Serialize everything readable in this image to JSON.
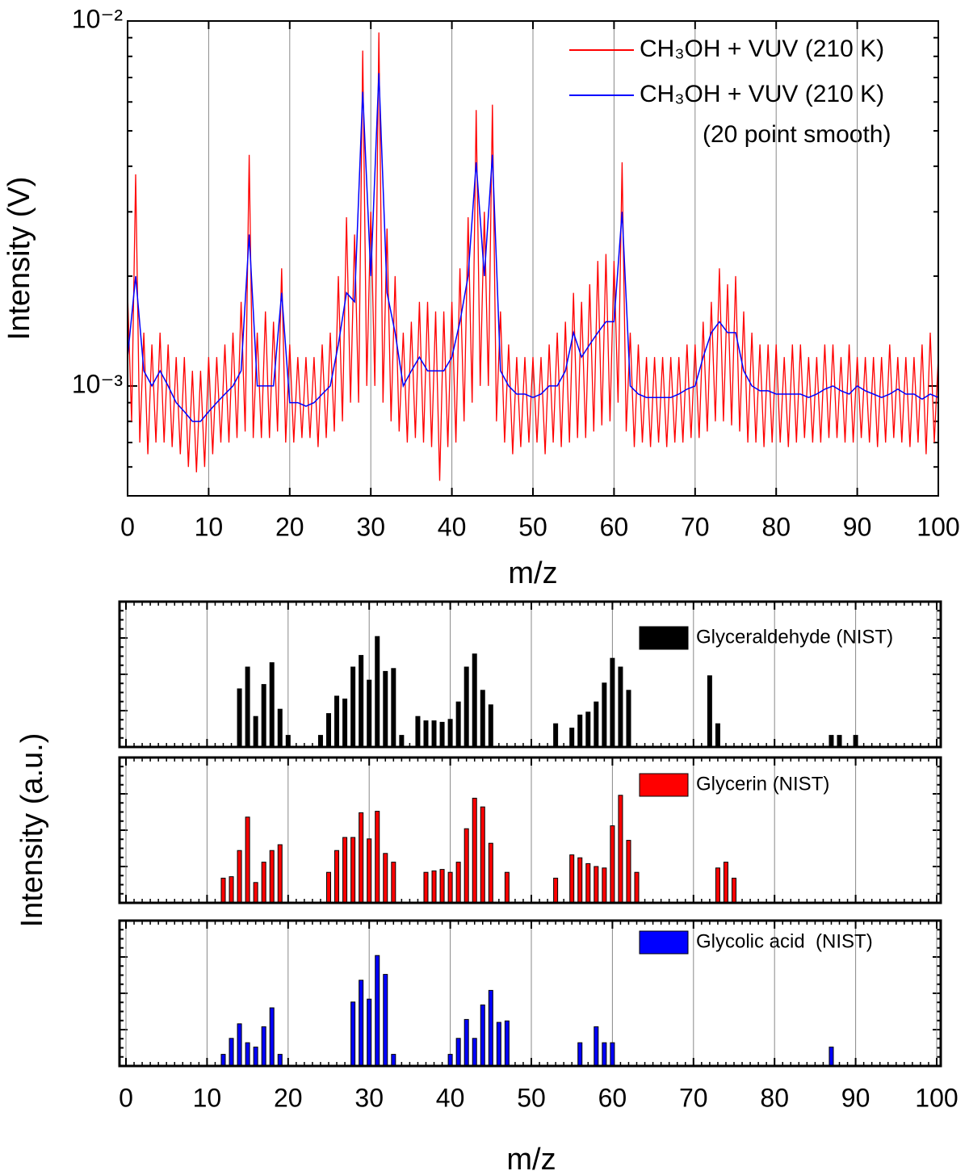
{
  "chart_data": [
    {
      "type": "line",
      "xlabel": "m/z",
      "ylabel": "Intensity (V)",
      "xlim": [
        0,
        100
      ],
      "xticks": [
        0,
        10,
        20,
        30,
        40,
        50,
        60,
        70,
        80,
        90,
        100
      ],
      "ylim": [
        0.0005,
        0.01
      ],
      "yscale": "log",
      "yticks": [
        {
          "value": 0.001,
          "label": "10⁻³"
        },
        {
          "value": 0.01,
          "label": "10⁻²"
        }
      ],
      "grid": true,
      "annotations": [
        "(20 point smooth)"
      ],
      "series": [
        {
          "name": "CH₃OH + VUV (210 K)",
          "color": "#ff0000",
          "x": [
            0,
            0.5,
            1,
            1.5,
            2,
            2.5,
            3,
            3.5,
            4,
            4.5,
            5,
            5.5,
            6,
            6.5,
            7,
            7.5,
            8,
            8.5,
            9,
            9.5,
            10,
            10.5,
            11,
            11.5,
            12,
            12.5,
            13,
            13.5,
            14,
            14.5,
            15,
            15.5,
            16,
            16.5,
            17,
            17.5,
            18,
            18.5,
            19,
            19.5,
            20,
            20.5,
            21,
            21.5,
            22,
            22.5,
            23,
            23.5,
            24,
            24.5,
            25,
            25.5,
            26,
            26.5,
            27,
            27.5,
            28,
            28.5,
            29,
            29.5,
            30,
            30.5,
            31,
            31.5,
            32,
            32.5,
            33,
            33.5,
            34,
            34.5,
            35,
            35.5,
            36,
            36.5,
            37,
            37.5,
            38,
            38.5,
            39,
            39.5,
            40,
            40.5,
            41,
            41.5,
            42,
            42.5,
            43,
            43.5,
            44,
            44.5,
            45,
            45.5,
            46,
            46.5,
            47,
            47.5,
            48,
            48.5,
            49,
            49.5,
            50,
            50.5,
            51,
            51.5,
            52,
            52.5,
            53,
            53.5,
            54,
            54.5,
            55,
            55.5,
            56,
            56.5,
            57,
            57.5,
            58,
            58.5,
            59,
            59.5,
            60,
            60.5,
            61,
            61.5,
            62,
            62.5,
            63,
            63.5,
            64,
            64.5,
            65,
            65.5,
            66,
            66.5,
            67,
            67.5,
            68,
            68.5,
            69,
            69.5,
            70,
            70.5,
            71,
            71.5,
            72,
            72.5,
            73,
            73.5,
            74,
            74.5,
            75,
            75.5,
            76,
            76.5,
            77,
            77.5,
            78,
            78.5,
            79,
            79.5,
            80,
            80.5,
            81,
            81.5,
            82,
            82.5,
            83,
            83.5,
            84,
            84.5,
            85,
            85.5,
            86,
            86.5,
            87,
            87.5,
            88,
            88.5,
            89,
            89.5,
            90,
            90.5,
            91,
            91.5,
            92,
            92.5,
            93,
            93.5,
            94,
            94.5,
            95,
            95.5,
            96,
            96.5,
            97,
            97.5,
            98,
            98.5,
            99,
            99.5,
            100
          ],
          "values": [
            0.0018,
            0.0008,
            0.0038,
            0.0007,
            0.0014,
            0.00065,
            0.0013,
            0.0007,
            0.0014,
            0.0007,
            0.0013,
            0.00068,
            0.0012,
            0.00065,
            0.0012,
            0.0006,
            0.0011,
            0.00058,
            0.0011,
            0.0006,
            0.0012,
            0.00065,
            0.0012,
            0.0007,
            0.0013,
            0.0007,
            0.0014,
            0.00072,
            0.0017,
            0.00075,
            0.0043,
            0.00072,
            0.0014,
            0.00072,
            0.0016,
            0.00072,
            0.0015,
            0.00075,
            0.0021,
            0.0007,
            0.0013,
            0.0007,
            0.0012,
            0.00072,
            0.0012,
            0.00072,
            0.0012,
            0.00068,
            0.0013,
            0.00072,
            0.0014,
            0.00075,
            0.002,
            0.0008,
            0.0029,
            0.0009,
            0.0026,
            0.0009,
            0.0083,
            0.001,
            0.003,
            0.001,
            0.0093,
            0.0009,
            0.0027,
            0.0008,
            0.002,
            0.00075,
            0.0014,
            0.0007,
            0.0015,
            0.00072,
            0.0017,
            0.0007,
            0.0017,
            0.00068,
            0.0016,
            0.00055,
            0.0016,
            0.00068,
            0.0017,
            0.0007,
            0.0021,
            0.0008,
            0.0029,
            0.0009,
            0.0057,
            0.001,
            0.003,
            0.001,
            0.0059,
            0.0008,
            0.0016,
            0.0007,
            0.0013,
            0.00065,
            0.0012,
            0.00068,
            0.0012,
            0.0007,
            0.0012,
            0.0007,
            0.0012,
            0.00065,
            0.0013,
            0.0007,
            0.0014,
            0.00068,
            0.0015,
            0.0007,
            0.0018,
            0.00072,
            0.0017,
            0.00072,
            0.0019,
            0.00075,
            0.0022,
            0.00078,
            0.0023,
            0.0008,
            0.0022,
            0.0009,
            0.0041,
            0.00075,
            0.0014,
            0.00068,
            0.0013,
            0.0007,
            0.0012,
            0.00068,
            0.0012,
            0.0007,
            0.0012,
            0.00068,
            0.0012,
            0.0007,
            0.0012,
            0.0007,
            0.0013,
            0.00072,
            0.0013,
            0.00072,
            0.0015,
            0.00075,
            0.0017,
            0.0008,
            0.0021,
            0.0008,
            0.0019,
            0.00078,
            0.002,
            0.00075,
            0.0016,
            0.0007,
            0.0014,
            0.0007,
            0.0013,
            0.00068,
            0.0013,
            0.0007,
            0.0013,
            0.0007,
            0.0012,
            0.00068,
            0.0013,
            0.0007,
            0.0013,
            0.00072,
            0.0012,
            0.0007,
            0.0012,
            0.0007,
            0.0013,
            0.00072,
            0.0013,
            0.00072,
            0.0012,
            0.0007,
            0.0013,
            0.0007,
            0.0012,
            0.00072,
            0.0012,
            0.0007,
            0.0012,
            0.00068,
            0.0012,
            0.0007,
            0.0013,
            0.00072,
            0.0012,
            0.0007,
            0.0012,
            0.00068,
            0.0012,
            0.0007,
            0.0013,
            0.00065,
            0.0014,
            0.0007,
            0.0012
          ]
        },
        {
          "name": "CH₃OH + VUV (210 K)",
          "color": "#0000ff",
          "x": [
            0,
            1,
            2,
            3,
            4,
            5,
            6,
            7,
            8,
            9,
            10,
            11,
            12,
            13,
            14,
            15,
            16,
            17,
            18,
            19,
            20,
            21,
            22,
            23,
            24,
            25,
            26,
            27,
            28,
            29,
            30,
            31,
            32,
            33,
            34,
            35,
            36,
            37,
            38,
            39,
            40,
            41,
            42,
            43,
            44,
            45,
            46,
            47,
            48,
            49,
            50,
            51,
            52,
            53,
            54,
            55,
            56,
            57,
            58,
            59,
            60,
            61,
            62,
            63,
            64,
            65,
            66,
            67,
            68,
            69,
            70,
            71,
            72,
            73,
            74,
            75,
            76,
            77,
            78,
            79,
            80,
            81,
            82,
            83,
            84,
            85,
            86,
            87,
            88,
            89,
            90,
            91,
            92,
            93,
            94,
            95,
            96,
            97,
            98,
            99,
            100
          ],
          "values": [
            0.0012,
            0.002,
            0.0011,
            0.001,
            0.0011,
            0.001,
            0.0009,
            0.00085,
            0.0008,
            0.0008,
            0.00085,
            0.0009,
            0.00095,
            0.001,
            0.0011,
            0.0026,
            0.001,
            0.001,
            0.001,
            0.0018,
            0.0009,
            0.0009,
            0.00088,
            0.0009,
            0.00095,
            0.001,
            0.0013,
            0.0018,
            0.0017,
            0.0064,
            0.002,
            0.0072,
            0.0018,
            0.0014,
            0.001,
            0.0011,
            0.0012,
            0.0011,
            0.0011,
            0.0011,
            0.0012,
            0.0015,
            0.002,
            0.0041,
            0.002,
            0.0043,
            0.0011,
            0.001,
            0.00095,
            0.00095,
            0.00093,
            0.00095,
            0.001,
            0.001,
            0.0011,
            0.0014,
            0.0012,
            0.0013,
            0.0014,
            0.0015,
            0.0015,
            0.003,
            0.001,
            0.00095,
            0.00093,
            0.00093,
            0.00093,
            0.00093,
            0.00095,
            0.00098,
            0.001,
            0.0012,
            0.0014,
            0.0015,
            0.0014,
            0.0014,
            0.0011,
            0.001,
            0.00097,
            0.00097,
            0.00095,
            0.00095,
            0.00095,
            0.00095,
            0.00093,
            0.00095,
            0.00098,
            0.001,
            0.00097,
            0.00095,
            0.001,
            0.00097,
            0.00095,
            0.00093,
            0.00095,
            0.00098,
            0.00095,
            0.00095,
            0.00092,
            0.00095,
            0.00093
          ]
        }
      ]
    },
    {
      "type": "bar",
      "xlim": [
        0,
        100
      ],
      "ylim": [
        0,
        100
      ],
      "series": [
        {
          "name": "Glyceraldehyde (NIST)",
          "color": "#000000",
          "x": [
            14,
            15,
            16,
            17,
            18,
            19,
            20,
            24,
            25,
            26,
            27,
            28,
            29,
            30,
            31,
            32,
            33,
            34,
            36,
            37,
            38,
            39,
            40,
            41,
            42,
            43,
            44,
            45,
            53,
            55,
            56,
            57,
            58,
            59,
            60,
            61,
            62,
            72,
            73,
            87,
            88,
            90
          ],
          "values": [
            40,
            55,
            21,
            43,
            58,
            26,
            8,
            8,
            23,
            35,
            33,
            55,
            63,
            46,
            76,
            52,
            54,
            8,
            21,
            18,
            18,
            17,
            19,
            31,
            55,
            64,
            39,
            29,
            16,
            13,
            22,
            24,
            31,
            44,
            61,
            55,
            39,
            49,
            16,
            8,
            8,
            8
          ]
        }
      ]
    },
    {
      "type": "bar",
      "xlim": [
        0,
        100
      ],
      "ylim": [
        0,
        100
      ],
      "ylabel": "Intensity (a.u.)",
      "series": [
        {
          "name": "Glycerin (NIST)",
          "color": "#ff0000",
          "x": [
            12,
            13,
            14,
            15,
            16,
            17,
            18,
            19,
            25,
            26,
            27,
            28,
            29,
            30,
            31,
            32,
            33,
            37,
            38,
            39,
            40,
            41,
            42,
            43,
            44,
            45,
            47,
            53,
            55,
            56,
            57,
            58,
            59,
            60,
            61,
            62,
            63,
            73,
            74,
            75
          ],
          "values": [
            17,
            18,
            36,
            59,
            14,
            28,
            36,
            40,
            21,
            36,
            45,
            45,
            62,
            44,
            63,
            34,
            28,
            21,
            22,
            23,
            21,
            28,
            51,
            72,
            66,
            41,
            21,
            17,
            33,
            31,
            27,
            25,
            24,
            53,
            74,
            43,
            21,
            24,
            28,
            17
          ]
        }
      ]
    },
    {
      "type": "bar",
      "xlim": [
        0,
        100
      ],
      "ylim": [
        0,
        100
      ],
      "xlabel": "m/z",
      "xticks": [
        0,
        10,
        20,
        30,
        40,
        50,
        60,
        70,
        80,
        90,
        100
      ],
      "series": [
        {
          "name": "Glycolic acid  (NIST)",
          "color": "#0000ff",
          "x": [
            12,
            13,
            14,
            15,
            16,
            17,
            18,
            19,
            28,
            29,
            30,
            31,
            32,
            33,
            40,
            41,
            42,
            43,
            44,
            45,
            46,
            47,
            56,
            58,
            59,
            60,
            87
          ],
          "values": [
            8,
            19,
            29,
            16,
            13,
            27,
            40,
            8,
            44,
            59,
            46,
            76,
            63,
            8,
            8,
            19,
            32,
            19,
            42,
            52,
            30,
            31,
            16,
            27,
            16,
            16,
            13
          ]
        }
      ]
    }
  ]
}
